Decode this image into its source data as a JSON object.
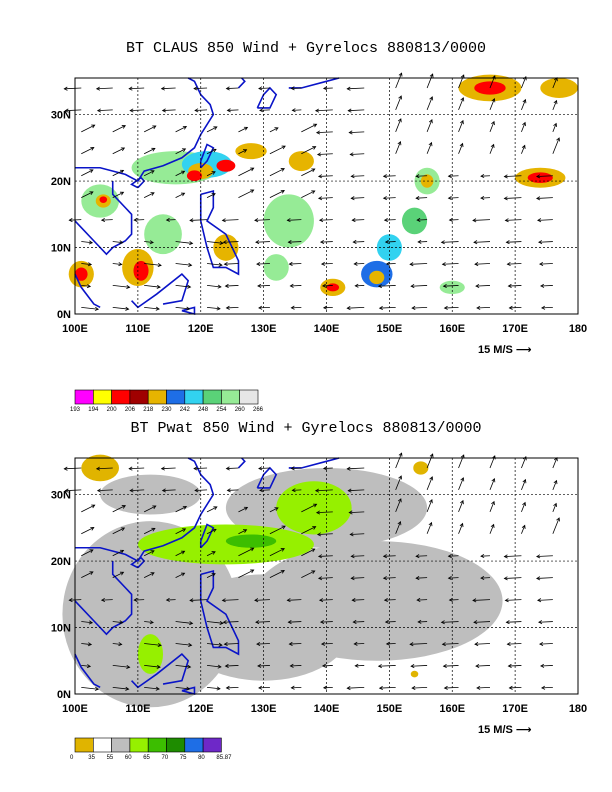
{
  "top": {
    "title": "BT CLAUS 850 Wind + Gyrelocs 880813/0000",
    "ref_vector": "15 M/S",
    "colorbar": {
      "labels": [
        "193",
        "194",
        "200",
        "206",
        "218",
        "230",
        "242",
        "248",
        "254",
        "260",
        "266"
      ],
      "colors": [
        "#ff00ff",
        "#ffff00",
        "#ff0000",
        "#a00000",
        "#e6b400",
        "#1e6ee6",
        "#32d2f0",
        "#5ad278",
        "#96eb96",
        "#e6e6e6"
      ]
    }
  },
  "bottom": {
    "title": "BT Pwat 850 Wind + Gyrelocs 880813/0000",
    "ref_vector": "15 M/S",
    "colorbar": {
      "labels": [
        "0",
        "35",
        "55",
        "60",
        "65",
        "70",
        "75",
        "80",
        "85.87"
      ],
      "colors": [
        "#e0b400",
        "#ffffff",
        "#bebebe",
        "#96f000",
        "#3cbe00",
        "#1e8c00",
        "#1e6ee6",
        "#6e28c8"
      ]
    }
  },
  "axes": {
    "x_ticks": [
      "100E",
      "110E",
      "120E",
      "130E",
      "140E",
      "150E",
      "160E",
      "170E",
      "180"
    ],
    "y_ticks": [
      "0N",
      "10N",
      "20N",
      "30N"
    ]
  }
}
